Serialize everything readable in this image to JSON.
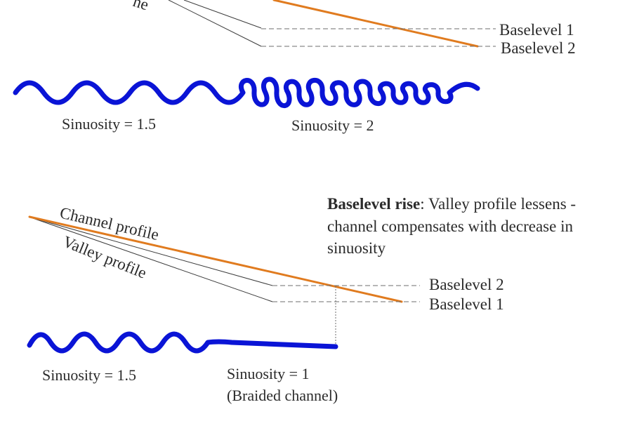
{
  "colors": {
    "channel_profile": "#e07b1f",
    "river": "#0a14d6",
    "lines": "#3a3a3a",
    "text": "#2b2b2b"
  },
  "top_panel": {
    "cut_label_fragment": "ne",
    "baselevel_upper": "Baselevel 1",
    "baselevel_lower": "Baselevel 2",
    "sinuosity_left": "Sinuosity = 1.5",
    "sinuosity_right": "Sinuosity = 2"
  },
  "bottom_panel": {
    "caption_bold": "Baselevel rise",
    "caption_line1": ": Valley profile lessens -",
    "caption_line2": "channel compensates with decrease in",
    "caption_line3": "sinuosity",
    "channel_profile_label": "Channel profile",
    "valley_profile_label": "Valley profile",
    "baselevel_upper": "Baselevel 2",
    "baselevel_lower": "Baselevel 1",
    "sinuosity_left": "Sinuosity = 1.5",
    "sinuosity_right_line1": "Sinuosity = 1",
    "sinuosity_right_line2": "(Braided channel)"
  }
}
